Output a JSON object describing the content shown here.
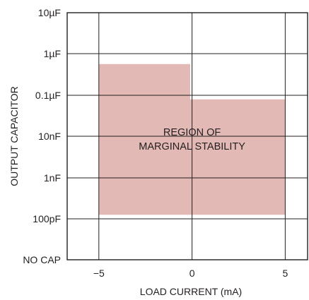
{
  "chart_data": {
    "type": "area",
    "title": "",
    "xlabel": "LOAD CURRENT (mA)",
    "ylabel": "OUTPUT CAPACITOR",
    "x_ticks": [
      {
        "value": -5,
        "label": "−5"
      },
      {
        "value": 0,
        "label": "0"
      },
      {
        "value": 5,
        "label": "5"
      }
    ],
    "y_ticks": [
      {
        "level": 0,
        "label": "NO CAP"
      },
      {
        "level": 1,
        "label": "100pF"
      },
      {
        "level": 2,
        "label": "1nF"
      },
      {
        "level": 3,
        "label": "10nF"
      },
      {
        "level": 4,
        "label": "0.1µF"
      },
      {
        "level": 5,
        "label": "1µF"
      },
      {
        "level": 6,
        "label": "10µF"
      }
    ],
    "xlim": [
      -6.7,
      6.2
    ],
    "ylim": [
      0,
      6
    ],
    "grid": true,
    "y_scale": "log (capacitance decades)",
    "regions": [
      {
        "name": "REGION OF MARGINAL STABILITY",
        "color": "#e2b9b4",
        "polygon": [
          [
            -5,
            1.1
          ],
          [
            -5,
            4.75
          ],
          [
            -0.1,
            4.75
          ],
          [
            -0.1,
            3.9
          ],
          [
            5,
            3.9
          ],
          [
            5,
            1.1
          ]
        ]
      }
    ],
    "annotations": [
      {
        "line1": "REGION OF",
        "line2": "MARGINAL STABILITY",
        "x": 0,
        "y": 2.9
      }
    ]
  }
}
